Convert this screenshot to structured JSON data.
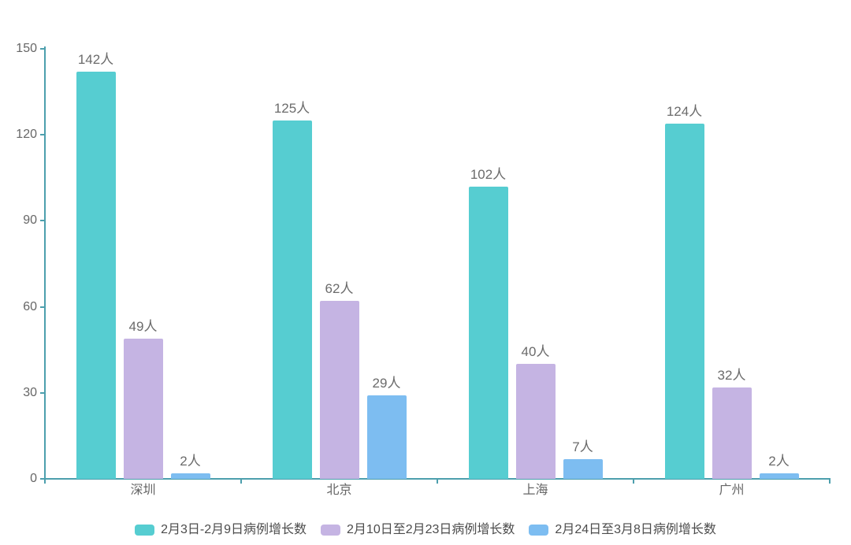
{
  "chart_data": {
    "type": "bar",
    "title": "",
    "xlabel": "",
    "ylabel": "",
    "categories": [
      "深圳",
      "北京",
      "上海",
      "广州"
    ],
    "series": [
      {
        "name": "2月3日-2月9日病例增长数",
        "color": "#56cdd1",
        "values": [
          142,
          125,
          102,
          124
        ]
      },
      {
        "name": "2月10日至2月23日病例增长数",
        "color": "#c5b4e3",
        "values": [
          49,
          62,
          40,
          32
        ]
      },
      {
        "name": "2月24日至3月8日病例增长数",
        "color": "#7dbdf1",
        "values": [
          2,
          29,
          7,
          2
        ]
      }
    ],
    "value_label_suffix": "人",
    "value_labels": [
      [
        "142人",
        "125人",
        "102人",
        "124人"
      ],
      [
        "49人",
        "62人",
        "40人",
        "32人"
      ],
      [
        "2人",
        "29人",
        "7人",
        "2人"
      ]
    ],
    "yticks": [
      "0",
      "30",
      "60",
      "90",
      "120",
      "150"
    ],
    "ytick_values": [
      0,
      30,
      60,
      90,
      120,
      150
    ],
    "ylim": [
      0,
      150
    ],
    "grid": false,
    "legend_position": "bottom",
    "colors": {
      "axis": "#4d9fad",
      "axis_label": "#666666",
      "value_label": "#6b6b6b",
      "legend_text": "#4c4c4c"
    }
  }
}
